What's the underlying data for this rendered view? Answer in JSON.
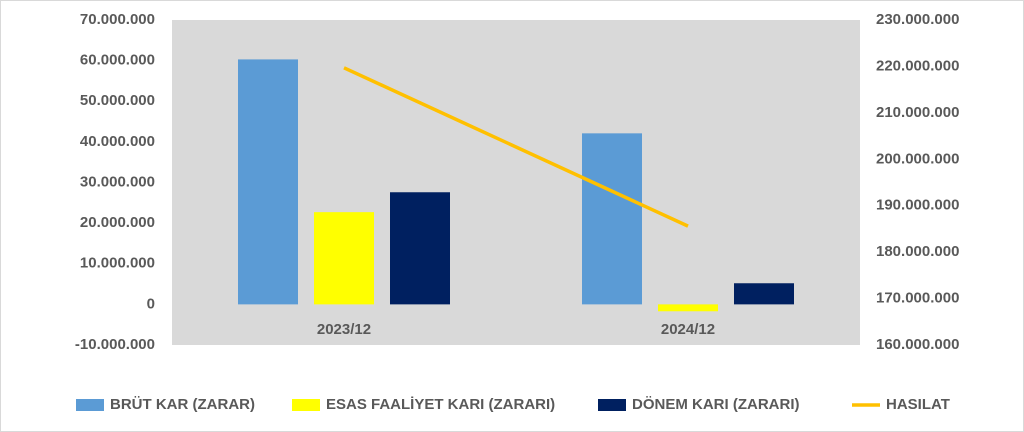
{
  "chart_data": {
    "type": "bar-line",
    "categories": [
      "2023/12",
      "2024/12"
    ],
    "series": [
      {
        "name": "BRÜT KAR (ZARAR)",
        "color": "#5b9bd5",
        "type": "bar",
        "values": [
          60300000,
          42100000
        ]
      },
      {
        "name": "ESAS FAALİYET KARI (ZARARI)",
        "color": "#ffff00",
        "type": "bar",
        "values": [
          22700000,
          -1700000
        ]
      },
      {
        "name": "DÖNEM KARI (ZARARI)",
        "color": "#002060",
        "type": "bar",
        "values": [
          27600000,
          5200000
        ]
      },
      {
        "name": "HASILAT",
        "color": "#ffc000",
        "type": "line",
        "axis": "y2",
        "values": [
          219700000,
          185600000
        ]
      }
    ],
    "ylim": [
      -10000000,
      70000000
    ],
    "yticks": [
      {
        "value": -10000000,
        "label": "-10.000.000"
      },
      {
        "value": 0,
        "label": "0"
      },
      {
        "value": 10000000,
        "label": "10.000.000"
      },
      {
        "value": 20000000,
        "label": "20.000.000"
      },
      {
        "value": 30000000,
        "label": "30.000.000"
      },
      {
        "value": 40000000,
        "label": "40.000.000"
      },
      {
        "value": 50000000,
        "label": "50.000.000"
      },
      {
        "value": 60000000,
        "label": "60.000.000"
      },
      {
        "value": 70000000,
        "label": "70.000.000"
      }
    ],
    "y2lim": [
      160000000,
      230000000
    ],
    "y2ticks": [
      {
        "value": 160000000,
        "label": "160.000.000"
      },
      {
        "value": 170000000,
        "label": "170.000.000"
      },
      {
        "value": 180000000,
        "label": "180.000.000"
      },
      {
        "value": 190000000,
        "label": "190.000.000"
      },
      {
        "value": 200000000,
        "label": "200.000.000"
      },
      {
        "value": 210000000,
        "label": "210.000.000"
      },
      {
        "value": 220000000,
        "label": "220.000.000"
      },
      {
        "value": 230000000,
        "label": "230.000.000"
      }
    ],
    "legend": "bottom"
  }
}
